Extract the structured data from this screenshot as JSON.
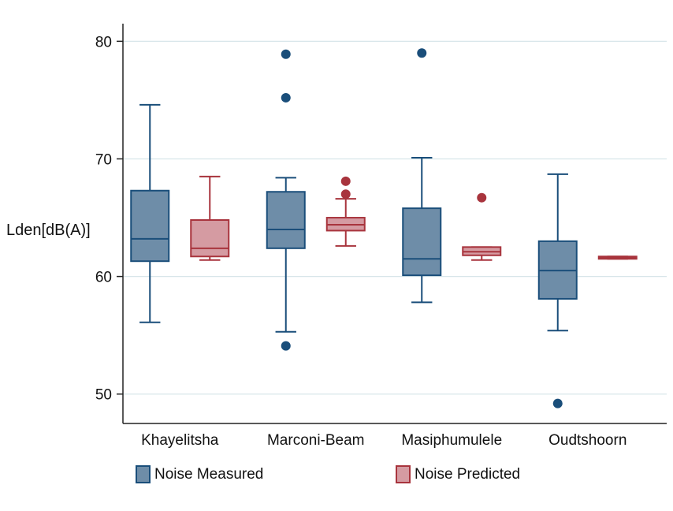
{
  "chart_data": {
    "type": "boxplot",
    "title": "",
    "xlabel": "",
    "ylabel": "Lden[dB(A)]",
    "ylim": [
      47.5,
      81.5
    ],
    "yticks": [
      50,
      60,
      70,
      80
    ],
    "grid": true,
    "legend_position": "bottom",
    "categories": [
      "Khayelitsha",
      "Marconi-Beam",
      "Masiphumulele",
      "Oudtshoorn"
    ],
    "series": [
      {
        "name": "Noise Measured",
        "fill": "#6e8da8",
        "stroke": "#1a4e7a",
        "boxes": [
          {
            "whisker_low": 56.1,
            "q1": 61.3,
            "median": 63.2,
            "q3": 67.3,
            "whisker_high": 74.6,
            "outliers": []
          },
          {
            "whisker_low": 55.3,
            "q1": 62.4,
            "median": 64.0,
            "q3": 67.2,
            "whisker_high": 68.4,
            "outliers": [
              54.1,
              75.2,
              78.9
            ]
          },
          {
            "whisker_low": 57.8,
            "q1": 60.1,
            "median": 61.5,
            "q3": 65.8,
            "whisker_high": 70.1,
            "outliers": [
              79.0
            ]
          },
          {
            "whisker_low": 55.4,
            "q1": 58.1,
            "median": 60.5,
            "q3": 63.0,
            "whisker_high": 68.7,
            "outliers": [
              49.2
            ]
          }
        ]
      },
      {
        "name": "Noise Predicted",
        "fill": "#d59ba2",
        "stroke": "#a8343d",
        "boxes": [
          {
            "whisker_low": 61.4,
            "q1": 61.7,
            "median": 62.4,
            "q3": 64.8,
            "whisker_high": 68.5,
            "outliers": []
          },
          {
            "whisker_low": 62.6,
            "q1": 63.9,
            "median": 64.4,
            "q3": 65.0,
            "whisker_high": 66.6,
            "outliers": [
              67.0,
              68.1
            ]
          },
          {
            "whisker_low": 61.4,
            "q1": 61.8,
            "median": 62.1,
            "q3": 62.5,
            "whisker_high": 62.5,
            "outliers": [
              66.7
            ]
          },
          {
            "whisker_low": 61.5,
            "q1": 61.5,
            "median": 61.6,
            "q3": 61.7,
            "whisker_high": 61.7,
            "outliers": []
          }
        ]
      }
    ]
  }
}
